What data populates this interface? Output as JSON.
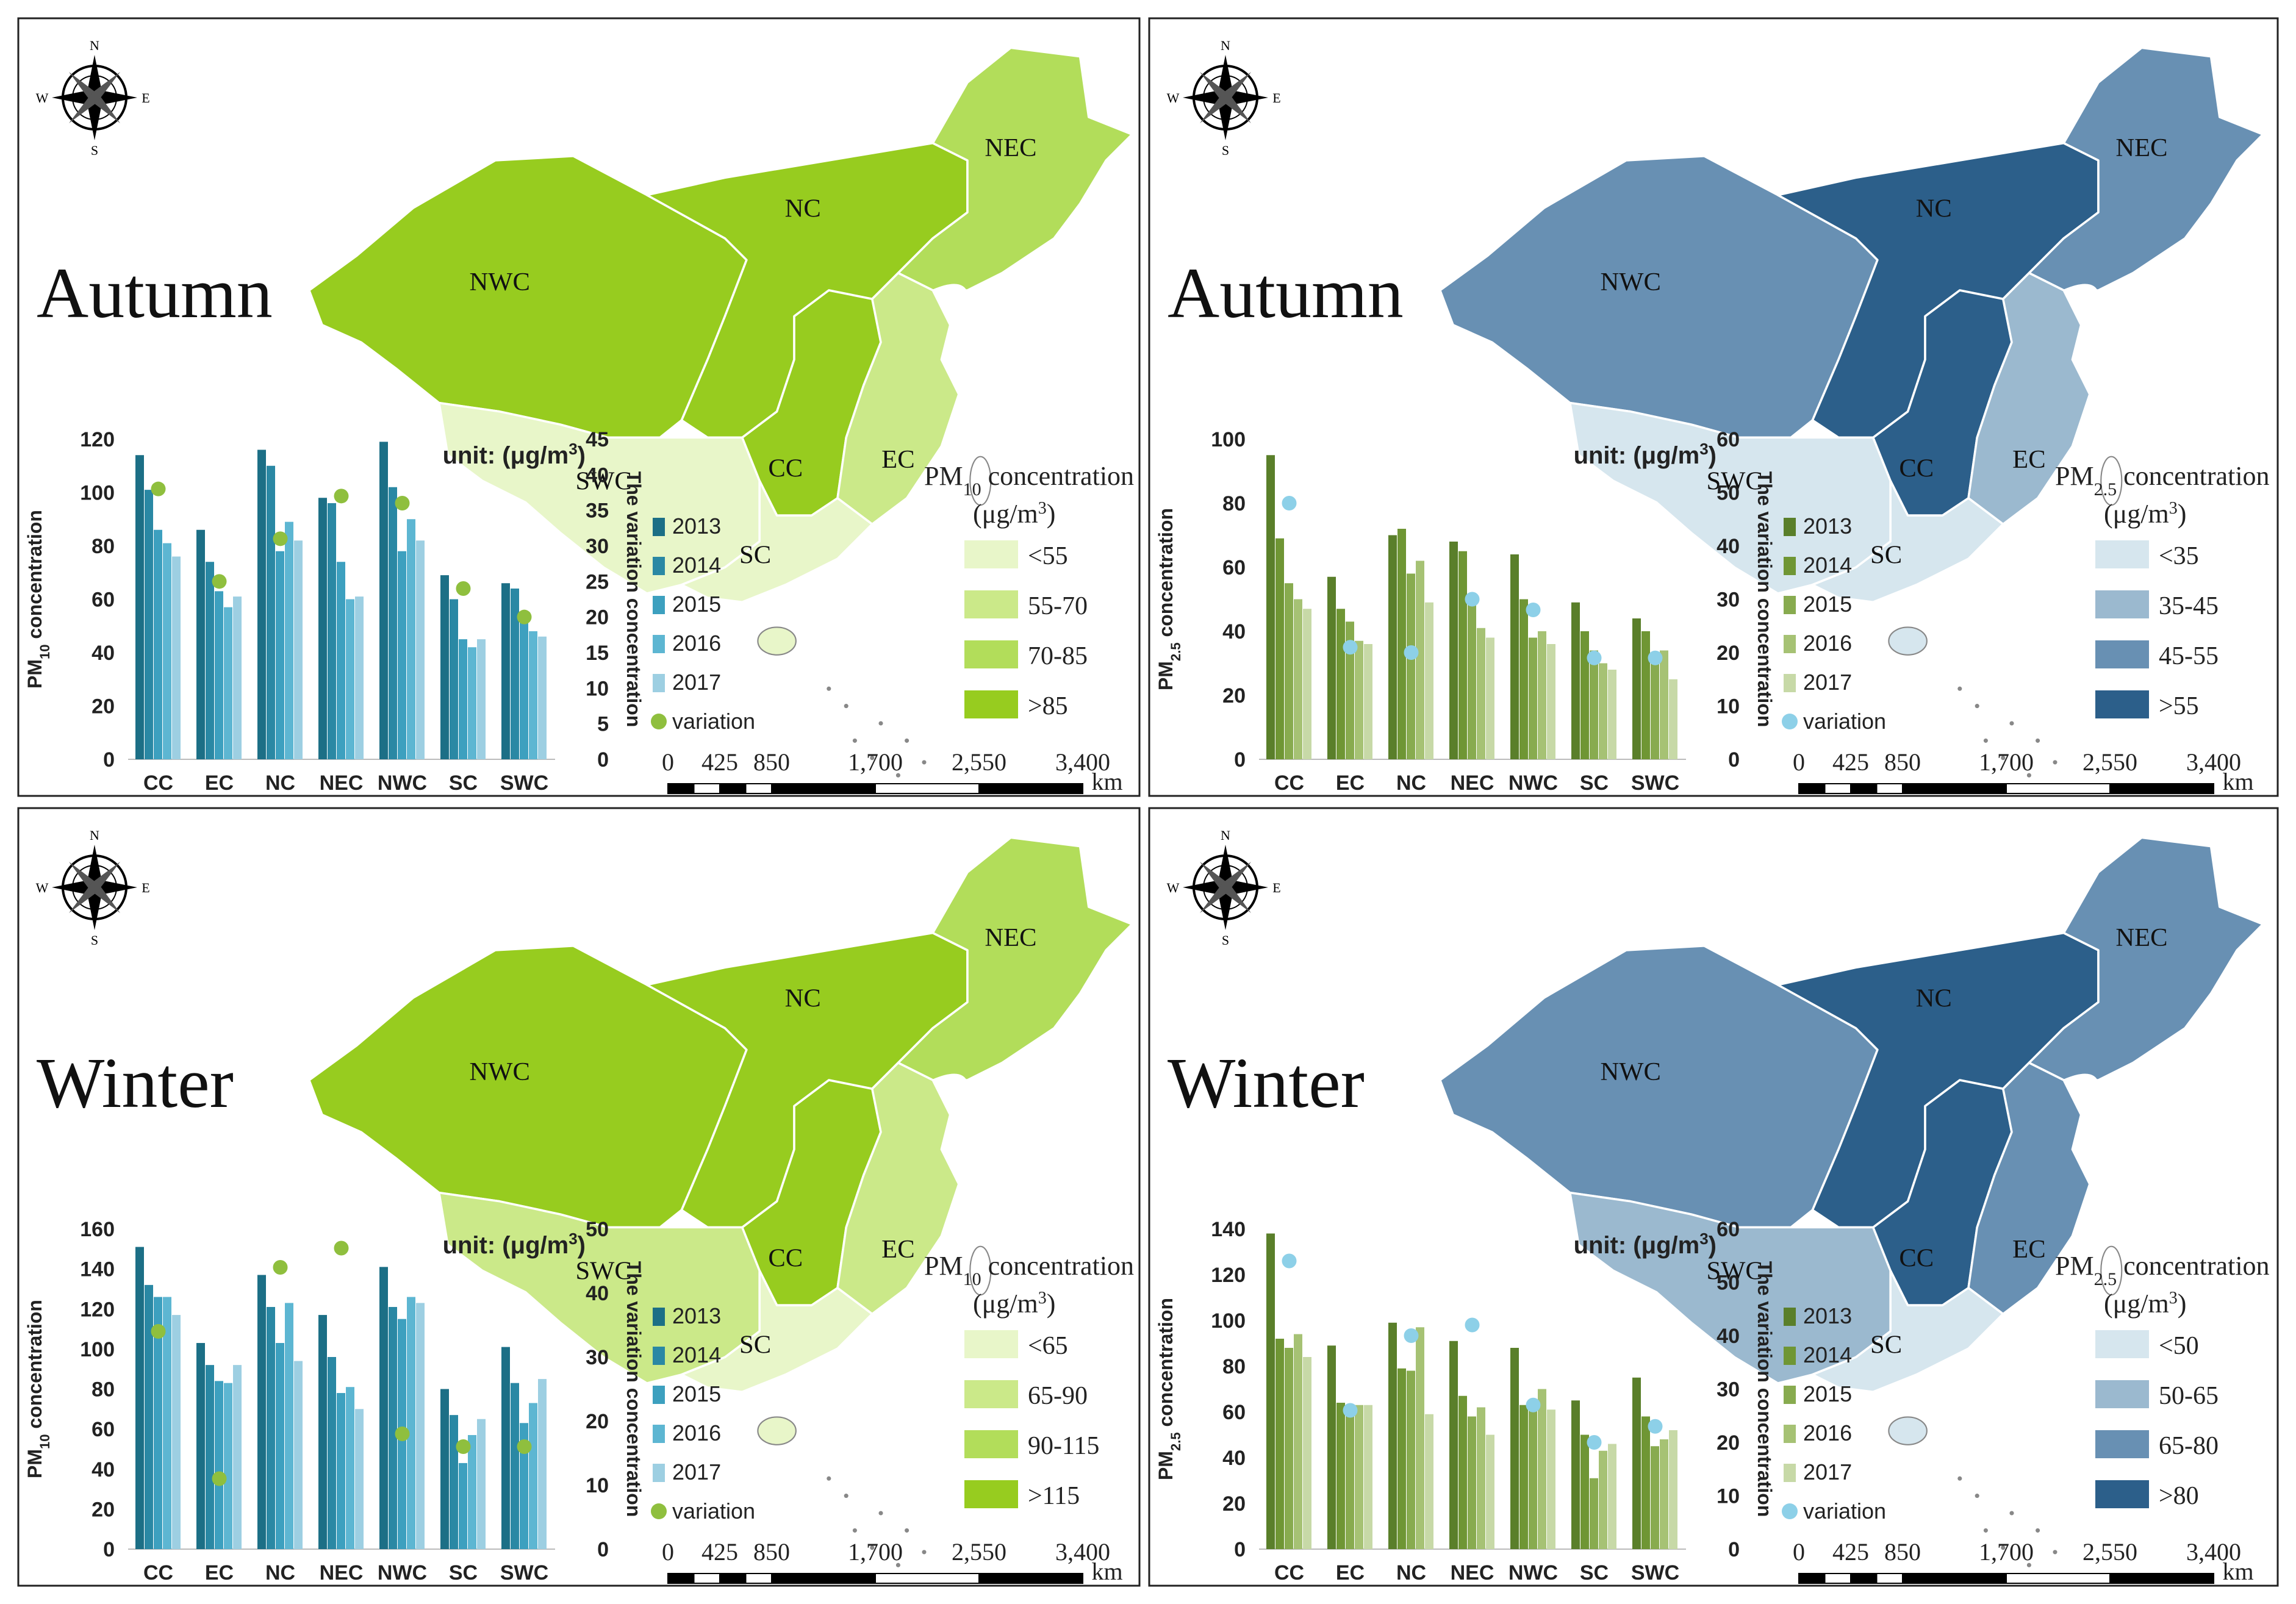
{
  "regions": [
    "NWC",
    "NC",
    "NEC",
    "SWC",
    "CC",
    "EC",
    "SC"
  ],
  "compass": {
    "n": "N",
    "s": "S",
    "e": "E",
    "w": "W"
  },
  "scale": {
    "ticks": [
      "0",
      "425",
      "850",
      "1,700",
      "2,550",
      "3,400"
    ],
    "values": [
      0,
      425,
      850,
      1700,
      2550,
      3400
    ],
    "unit": "km"
  },
  "panels": [
    {
      "season": "Autumn",
      "colors": {
        "map": [
          "#e8f6c9",
          "#cbe989",
          "#b2dd5a",
          "#97cc1f"
        ],
        "bars": [
          "#1c6f86",
          "#2a88a4",
          "#3da0bf",
          "#5db6d2",
          "#9dcfe2"
        ],
        "dot": "#8fbf3e"
      },
      "map_levels": {
        "NWC": 3,
        "NC": 3,
        "NEC": 2,
        "SWC": 0,
        "CC": 3,
        "EC": 1,
        "SC": 0
      },
      "legend": {
        "title": "PM10 concentration",
        "title_main": "PM",
        "title_sub": "10",
        "title_rest": " concentration",
        "unit": "(μg/m3)",
        "unit_main": "(μg/m",
        "unit_sup": "3",
        "unit_close": ")",
        "items": [
          "<55",
          "55-70",
          "70-85",
          ">85"
        ]
      },
      "chart_data": {
        "type": "bar",
        "categories": [
          "CC",
          "EC",
          "NC",
          "NEC",
          "NWC",
          "SC",
          "SWC"
        ],
        "series": [
          {
            "name": "2013",
            "values": [
              114,
              86,
              116,
              98,
              119,
              69,
              66
            ]
          },
          {
            "name": "2014",
            "values": [
              101,
              74,
              110,
              96,
              102,
              60,
              64
            ]
          },
          {
            "name": "2015",
            "values": [
              86,
              63,
              78,
              74,
              78,
              45,
              55
            ]
          },
          {
            "name": "2016",
            "values": [
              81,
              57,
              89,
              60,
              90,
              42,
              48
            ]
          },
          {
            "name": "2017",
            "values": [
              76,
              61,
              82,
              61,
              82,
              45,
              46
            ]
          }
        ],
        "variation": {
          "name": "variation",
          "values": [
            38,
            25,
            31,
            37,
            36,
            24,
            20
          ]
        },
        "ylabel": "PM10 concentration",
        "ylabel_main": "PM",
        "ylabel_sub": "10",
        "ylabel_rest": " concentration",
        "y2label": "The variation concentration",
        "unit_label": "unit: (μg/m3)",
        "unit_main": "unit: (μg/m",
        "unit_sup": "3",
        "unit_close": ")",
        "ylim": [
          0,
          120
        ],
        "yticks": [
          0,
          20,
          40,
          60,
          80,
          100,
          120
        ],
        "y2lim": [
          0,
          45
        ],
        "y2ticks": [
          0,
          5,
          10,
          15,
          20,
          25,
          30,
          35,
          40,
          45
        ]
      }
    },
    {
      "season": "Autumn",
      "colors": {
        "map": [
          "#d6e6ee",
          "#9bb9cf",
          "#6890b3",
          "#2c5f8a"
        ],
        "bars": [
          "#5a7f2a",
          "#6f9634",
          "#88ab4f",
          "#a6c274",
          "#c7d9a7"
        ],
        "dot": "#8dd0e8"
      },
      "map_levels": {
        "NWC": 2,
        "NC": 3,
        "NEC": 2,
        "SWC": 0,
        "CC": 3,
        "EC": 1,
        "SC": 0
      },
      "legend": {
        "title": "PM2.5 concentration",
        "title_main": "PM",
        "title_sub": "2.5",
        "title_rest": " concentration",
        "unit": "(μg/m3)",
        "unit_main": "(μg/m",
        "unit_sup": "3",
        "unit_close": ")",
        "items": [
          "<35",
          "35-45",
          "45-55",
          ">55"
        ]
      },
      "chart_data": {
        "type": "bar",
        "categories": [
          "CC",
          "EC",
          "NC",
          "NEC",
          "NWC",
          "SC",
          "SWC"
        ],
        "series": [
          {
            "name": "2013",
            "values": [
              95,
              57,
              70,
              68,
              64,
              49,
              44
            ]
          },
          {
            "name": "2014",
            "values": [
              69,
              47,
              72,
              65,
              50,
              40,
              40
            ]
          },
          {
            "name": "2015",
            "values": [
              55,
              43,
              58,
              51,
              38,
              34,
              33
            ]
          },
          {
            "name": "2016",
            "values": [
              50,
              37,
              62,
              41,
              40,
              30,
              34
            ]
          },
          {
            "name": "2017",
            "values": [
              47,
              36,
              49,
              38,
              36,
              28,
              25
            ]
          }
        ],
        "variation": {
          "name": "variation",
          "values": [
            48,
            21,
            20,
            30,
            28,
            19,
            19
          ]
        },
        "ylabel": "PM2.5 concentration",
        "ylabel_main": "PM",
        "ylabel_sub": "2.5",
        "ylabel_rest": " concentration",
        "y2label": "The variation concentration",
        "unit_label": "unit: (μg/m3)",
        "unit_main": "unit: (μg/m",
        "unit_sup": "3",
        "unit_close": ")",
        "ylim": [
          0,
          100
        ],
        "yticks": [
          0,
          20,
          40,
          60,
          80,
          100
        ],
        "y2lim": [
          0,
          60
        ],
        "y2ticks": [
          0,
          10,
          20,
          30,
          40,
          50,
          60
        ]
      }
    },
    {
      "season": "Winter",
      "colors": {
        "map": [
          "#e8f6c9",
          "#cbe989",
          "#b2dd5a",
          "#97cc1f"
        ],
        "bars": [
          "#1c6f86",
          "#2a88a4",
          "#3da0bf",
          "#5db6d2",
          "#9dcfe2"
        ],
        "dot": "#8fbf3e"
      },
      "map_levels": {
        "NWC": 3,
        "NC": 3,
        "NEC": 2,
        "SWC": 1,
        "CC": 3,
        "EC": 1,
        "SC": 0
      },
      "legend": {
        "title": "PM10 concentration",
        "title_main": "PM",
        "title_sub": "10",
        "title_rest": " concentration",
        "unit": "(μg/m3)",
        "unit_main": "(μg/m",
        "unit_sup": "3",
        "unit_close": ")",
        "items": [
          "<65",
          "65-90",
          "90-115",
          ">115"
        ]
      },
      "chart_data": {
        "type": "bar",
        "categories": [
          "CC",
          "EC",
          "NC",
          "NEC",
          "NWC",
          "SC",
          "SWC"
        ],
        "series": [
          {
            "name": "2013",
            "values": [
              151,
              103,
              137,
              117,
              141,
              80,
              101
            ]
          },
          {
            "name": "2014",
            "values": [
              132,
              92,
              121,
              96,
              121,
              67,
              83
            ]
          },
          {
            "name": "2015",
            "values": [
              126,
              84,
              103,
              78,
              115,
              43,
              63
            ]
          },
          {
            "name": "2016",
            "values": [
              126,
              83,
              123,
              81,
              126,
              57,
              73
            ]
          },
          {
            "name": "2017",
            "values": [
              117,
              92,
              94,
              70,
              123,
              65,
              85
            ]
          }
        ],
        "variation": {
          "name": "variation",
          "values": [
            34,
            11,
            44,
            47,
            18,
            16,
            16
          ]
        },
        "ylabel": "PM10 concentration",
        "ylabel_main": "PM",
        "ylabel_sub": "10",
        "ylabel_rest": " concentration",
        "y2label": "The variation concentration",
        "unit_label": "unit: (μg/m3)",
        "unit_main": "unit: (μg/m",
        "unit_sup": "3",
        "unit_close": ")",
        "ylim": [
          0,
          160
        ],
        "yticks": [
          0,
          20,
          40,
          60,
          80,
          100,
          120,
          140,
          160
        ],
        "y2lim": [
          0,
          50
        ],
        "y2ticks": [
          0,
          10,
          20,
          30,
          40,
          50
        ]
      }
    },
    {
      "season": "Winter",
      "colors": {
        "map": [
          "#d6e6ee",
          "#9bb9cf",
          "#6890b3",
          "#2c5f8a"
        ],
        "bars": [
          "#5a7f2a",
          "#6f9634",
          "#88ab4f",
          "#a6c274",
          "#c7d9a7"
        ],
        "dot": "#8dd0e8"
      },
      "map_levels": {
        "NWC": 2,
        "NC": 3,
        "NEC": 2,
        "SWC": 1,
        "CC": 3,
        "EC": 2,
        "SC": 0
      },
      "legend": {
        "title": "PM2.5 concentration",
        "title_main": "PM",
        "title_sub": "2.5",
        "title_rest": " concentration",
        "unit": "(μg/m3)",
        "unit_main": "(μg/m",
        "unit_sup": "3",
        "unit_close": ")",
        "items": [
          "<50",
          "50-65",
          "65-80",
          ">80"
        ]
      },
      "chart_data": {
        "type": "bar",
        "categories": [
          "CC",
          "EC",
          "NC",
          "NEC",
          "NWC",
          "SC",
          "SWC"
        ],
        "series": [
          {
            "name": "2013",
            "values": [
              138,
              89,
              99,
              91,
              88,
              65,
              75
            ]
          },
          {
            "name": "2014",
            "values": [
              92,
              64,
              79,
              67,
              63,
              50,
              58
            ]
          },
          {
            "name": "2015",
            "values": [
              88,
              61,
              78,
              58,
              64,
              31,
              45
            ]
          },
          {
            "name": "2016",
            "values": [
              94,
              63,
              97,
              62,
              70,
              43,
              48
            ]
          },
          {
            "name": "2017",
            "values": [
              84,
              63,
              59,
              50,
              61,
              46,
              52
            ]
          }
        ],
        "variation": {
          "name": "variation",
          "values": [
            54,
            26,
            40,
            42,
            27,
            20,
            23
          ]
        },
        "ylabel": "PM2.5 concentration",
        "ylabel_main": "PM",
        "ylabel_sub": "2.5",
        "ylabel_rest": " concentration",
        "y2label": "The variation concentration",
        "unit_label": "unit: (μg/m3)",
        "unit_main": "unit: (μg/m",
        "unit_sup": "3",
        "unit_close": ")",
        "ylim": [
          0,
          140
        ],
        "yticks": [
          0,
          20,
          40,
          60,
          80,
          100,
          120,
          140
        ],
        "y2lim": [
          0,
          60
        ],
        "y2ticks": [
          0,
          10,
          20,
          30,
          40,
          50,
          60
        ]
      }
    }
  ]
}
